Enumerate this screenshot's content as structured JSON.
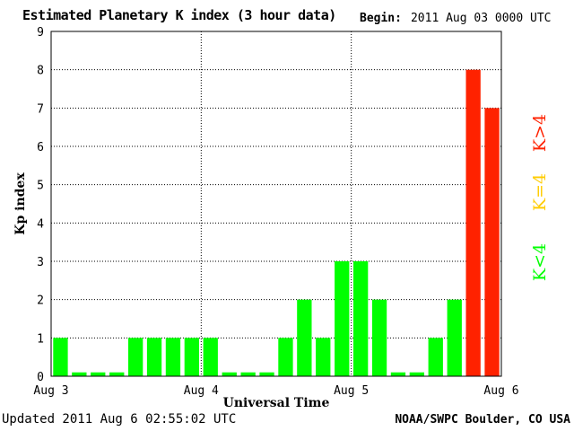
{
  "header": {
    "title": "Estimated Planetary K index (3 hour data)",
    "begin_label": "Begin:",
    "begin_value": "2011 Aug 03 0000 UTC"
  },
  "footer": {
    "updated": "Updated 2011 Aug  6 02:55:02 UTC",
    "credit": "NOAA/SWPC Boulder, CO USA"
  },
  "legend": {
    "low": "K<4",
    "mid": "K=4",
    "high": "K>4",
    "colors": {
      "low": "#00ff00",
      "mid": "#ffcc00",
      "high": "#ff2200"
    }
  },
  "chart_data": {
    "type": "bar",
    "title": "Estimated Planetary K index (3 hour data)",
    "xlabel": "Universal Time",
    "ylabel": "Kp index",
    "ylim": [
      0,
      9
    ],
    "y_ticks": [
      "0",
      "1",
      "2",
      "3",
      "4",
      "5",
      "6",
      "7",
      "8",
      "9"
    ],
    "x_tick_labels": [
      "Aug 3",
      "Aug 4",
      "Aug 5",
      "Aug 6"
    ],
    "grid": true,
    "values": [
      1,
      0,
      0,
      0,
      1,
      1,
      1,
      1,
      1,
      0,
      0,
      0,
      1,
      2,
      1,
      3,
      3,
      2,
      0,
      0,
      1,
      2,
      8,
      7
    ],
    "threshold_colors": {
      "below_4": "#00ff00",
      "equal_4": "#ffcc00",
      "above_4": "#ff2200"
    }
  }
}
